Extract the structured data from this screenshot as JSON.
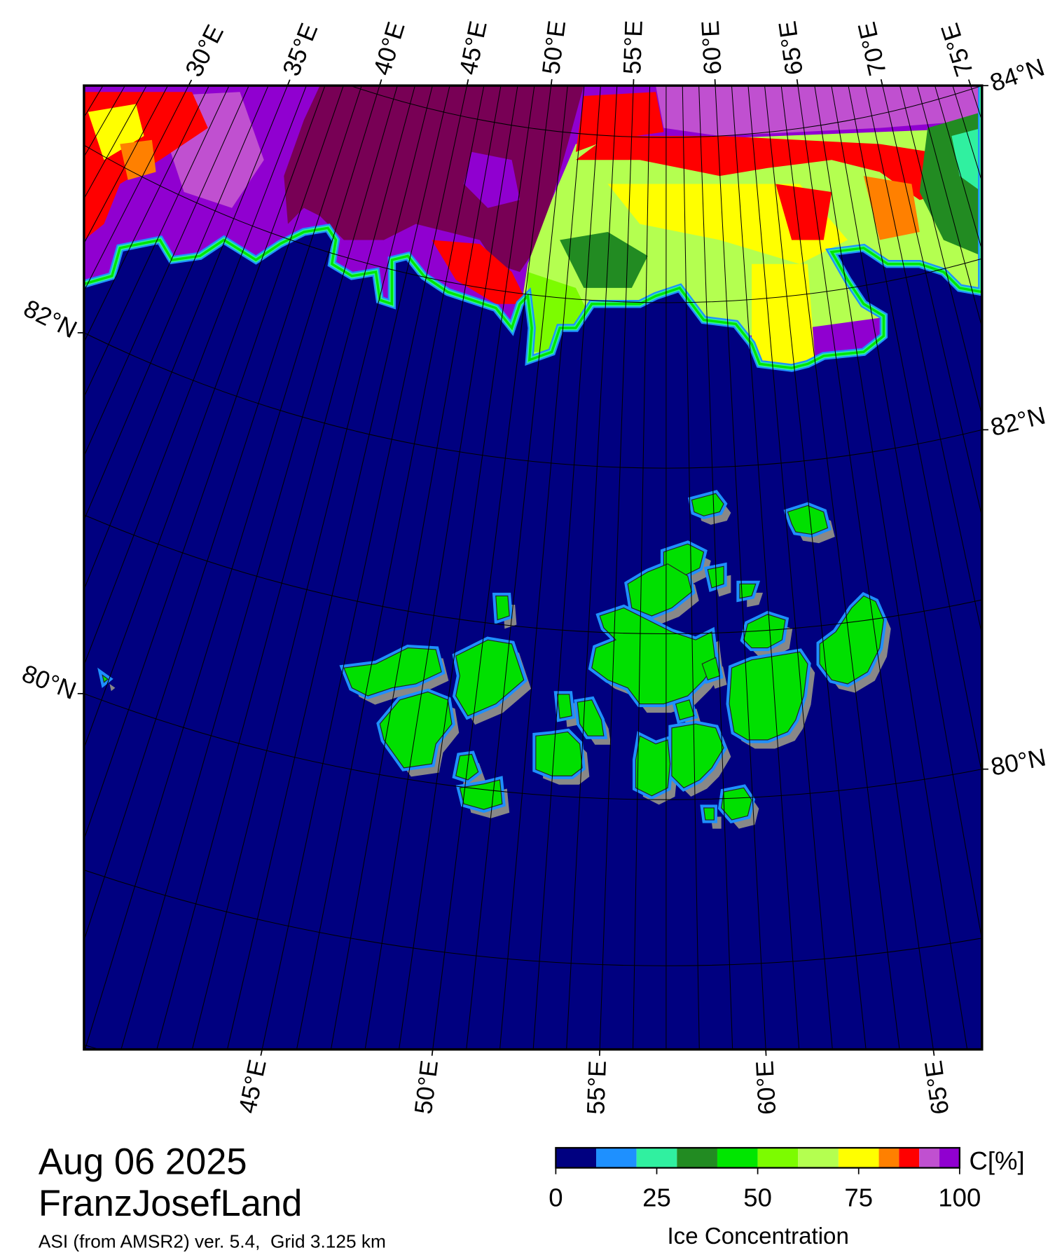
{
  "map": {
    "top_lon_ticks": [
      {
        "value": 30,
        "label": "30°E"
      },
      {
        "value": 35,
        "label": "35°E"
      },
      {
        "value": 40,
        "label": "40°E"
      },
      {
        "value": 45,
        "label": "45°E"
      },
      {
        "value": 50,
        "label": "50°E"
      },
      {
        "value": 55,
        "label": "55°E"
      },
      {
        "value": 60,
        "label": "60°E"
      },
      {
        "value": 65,
        "label": "65°E"
      },
      {
        "value": 70,
        "label": "70°E"
      },
      {
        "value": 75,
        "label": "75°E"
      }
    ],
    "bottom_lon_ticks": [
      {
        "value": 45,
        "label": "45°E"
      },
      {
        "value": 50,
        "label": "50°E"
      },
      {
        "value": 55,
        "label": "55°E"
      },
      {
        "value": 60,
        "label": "60°E"
      },
      {
        "value": 65,
        "label": "65°E"
      }
    ],
    "left_lat_ticks": [
      {
        "value": 82,
        "label": "82°N"
      },
      {
        "value": 80,
        "label": "80°N"
      }
    ],
    "right_lat_ticks": [
      {
        "value": 84,
        "label": "84°N"
      },
      {
        "value": 82,
        "label": "82°N"
      },
      {
        "value": 80,
        "label": "80°N"
      }
    ]
  },
  "date": "Aug 06 2025",
  "region": "FranzJosefLand",
  "source": "ASI (from AMSR2) ver. 5.4,  Grid 3.125 km",
  "colorbar": {
    "label": "Ice Concentration",
    "unit": "C[%]",
    "bounds": [
      0,
      10,
      20,
      30,
      40,
      50,
      60,
      70,
      80,
      85,
      90,
      95,
      100
    ],
    "colors": [
      "#000080",
      "#1e90ff",
      "#30f0a0",
      "#228b22",
      "#00e600",
      "#7cfc00",
      "#b4ff50",
      "#ffff00",
      "#ff8000",
      "#ff0000",
      "#c050d0",
      "#9000d0"
    ],
    "ticks": [
      0,
      25,
      50,
      75,
      100
    ]
  }
}
